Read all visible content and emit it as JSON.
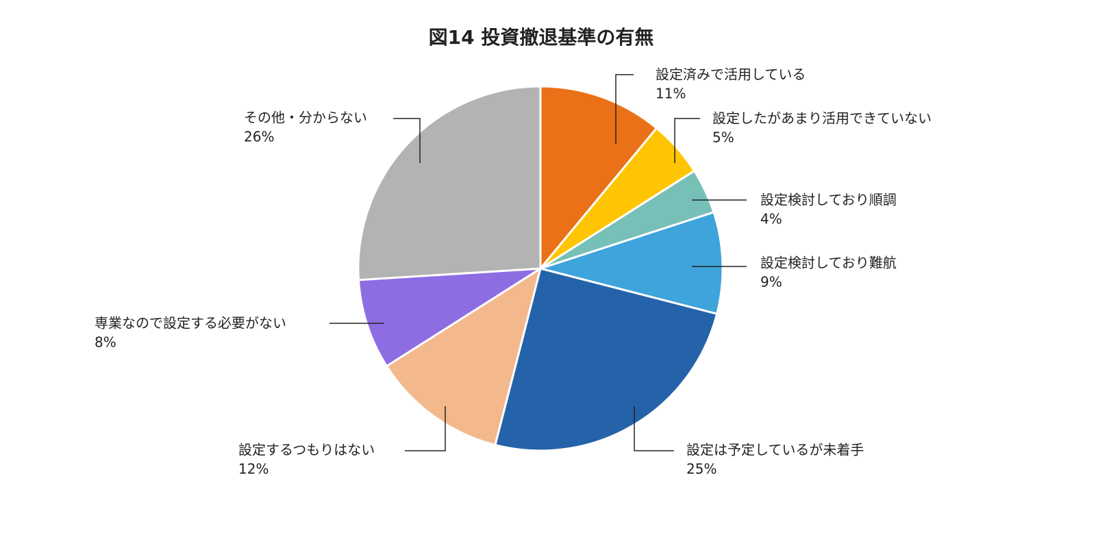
{
  "chart_data": {
    "type": "pie",
    "title": "図14 投資撤退基準の有無",
    "slices": [
      {
        "label": "設定済みで活用している",
        "pct_label": "11%",
        "value": 11,
        "color": "#EA7117"
      },
      {
        "label": "設定したがあまり活用できていない",
        "pct_label": "5%",
        "value": 5,
        "color": "#FFC502"
      },
      {
        "label": "設定検討しており順調",
        "pct_label": "4%",
        "value": 4,
        "color": "#77C0B8"
      },
      {
        "label": "設定検討しており難航",
        "pct_label": "9%",
        "value": 9,
        "color": "#3EA4DB"
      },
      {
        "label": "設定は予定しているが未着手",
        "pct_label": "25%",
        "value": 25,
        "color": "#2463AA"
      },
      {
        "label": "設定するつもりはない",
        "pct_label": "12%",
        "value": 12,
        "color": "#F3B98D"
      },
      {
        "label": "専業なので設定する必要がない",
        "pct_label": "8%",
        "value": 8,
        "color": "#8E6DE3"
      },
      {
        "label": "その他・分からない",
        "pct_label": "26%",
        "value": 26,
        "color": "#B3B3B3"
      }
    ]
  }
}
